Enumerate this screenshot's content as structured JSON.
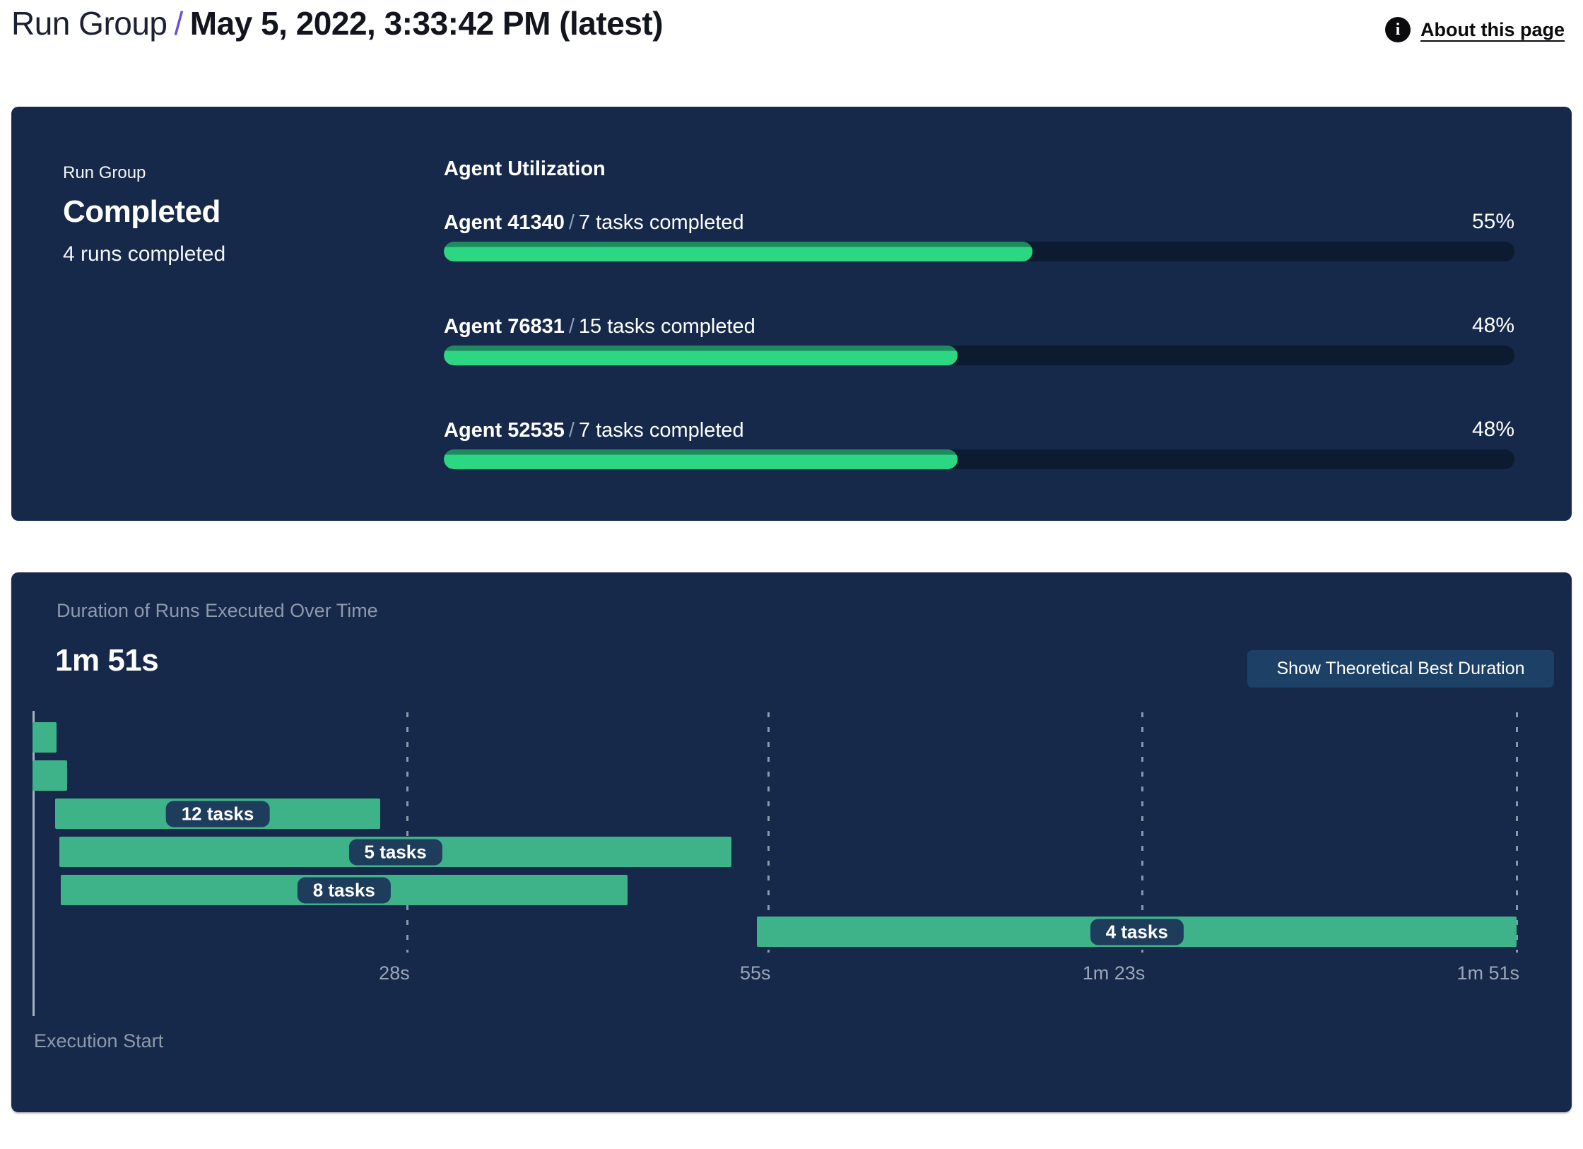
{
  "header": {
    "breadcrumb_root": "Run Group",
    "separator": "/",
    "title": "May 5, 2022, 3:33:42 PM (latest)",
    "about_link": "About this page",
    "info_icon_glyph": "i"
  },
  "summary_panel": {
    "label": "Run Group",
    "status": "Completed",
    "subtext": "4 runs completed",
    "section_title": "Agent Utilization",
    "separator": "/",
    "agents": [
      {
        "name": "Agent 41340",
        "tasks": "7 tasks completed",
        "percent": "55%",
        "value": 55
      },
      {
        "name": "Agent 76831",
        "tasks": "15 tasks completed",
        "percent": "48%",
        "value": 48
      },
      {
        "name": "Agent 52535",
        "tasks": "7 tasks completed",
        "percent": "48%",
        "value": 48
      }
    ]
  },
  "duration_panel": {
    "title": "Duration of Runs Executed Over Time",
    "total_duration": "1m 51s",
    "button_label": "Show Theoretical Best Duration",
    "execution_start_label": "Execution Start"
  },
  "chart_data": [
    {
      "type": "bar",
      "title": "Agent Utilization",
      "categories": [
        "Agent 41340",
        "Agent 76831",
        "Agent 52535"
      ],
      "values": [
        55,
        48,
        48
      ],
      "value_unit": "% utilization",
      "annotations": [
        "7 tasks completed",
        "15 tasks completed",
        "7 tasks completed"
      ],
      "xlim": [
        0,
        100
      ]
    },
    {
      "type": "gantt",
      "title": "Duration of Runs Executed Over Time",
      "total_duration": "1m 51s",
      "x_axis": {
        "label": "Execution Start",
        "max_seconds": 111,
        "ticks": [
          {
            "label": "28s",
            "seconds": 28
          },
          {
            "label": "55s",
            "seconds": 55
          },
          {
            "label": "1m 23s",
            "seconds": 83
          },
          {
            "label": "1m 51s",
            "seconds": 111
          }
        ]
      },
      "runs": [
        {
          "label": "",
          "start_seconds": 0,
          "end_seconds": 1.8
        },
        {
          "label": "",
          "start_seconds": 0,
          "end_seconds": 2.6
        },
        {
          "label": "12 tasks",
          "start_seconds": 1.7,
          "end_seconds": 26
        },
        {
          "label": "5 tasks",
          "start_seconds": 2.0,
          "end_seconds": 52.3
        },
        {
          "label": "8 tasks",
          "start_seconds": 2.1,
          "end_seconds": 44.5
        },
        {
          "label": "4 tasks",
          "start_seconds": 54.2,
          "end_seconds": 111
        }
      ]
    }
  ],
  "colors": {
    "panel_bg": "#16294a",
    "progress_fill": "#2bd783",
    "progress_fill_shade": "#1f8a60",
    "progress_track": "#0d1b30",
    "gantt_bar": "#3eb389",
    "task_pill_bg": "#1e3d5c",
    "button_bg": "#1d4066",
    "breadcrumb_separator": "#6c4fd9",
    "muted_text": "#8e9aac"
  }
}
